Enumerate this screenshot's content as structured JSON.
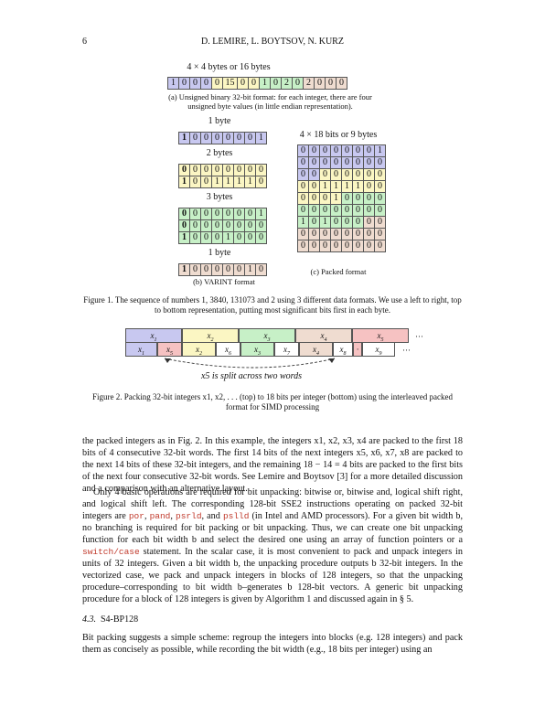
{
  "header": {
    "page_number": "6",
    "authors": "D. LEMIRE, L. BOYTSOV, N. KURZ"
  },
  "colors": {
    "purple": "#c8c8f0",
    "yellow": "#fbf6c3",
    "green": "#c7f0c7",
    "tan": "#efdcd0",
    "pink": "#f6c2c2",
    "white": "#ffffff"
  },
  "fig1": {
    "a_title": "4 × 4 bytes or 16 bytes",
    "a_bytes": [
      {
        "v": "1",
        "c": "purple"
      },
      {
        "v": "0",
        "c": "purple"
      },
      {
        "v": "0",
        "c": "purple"
      },
      {
        "v": "0",
        "c": "purple"
      },
      {
        "v": "0",
        "c": "yellow"
      },
      {
        "v": "15",
        "c": "yellow"
      },
      {
        "v": "0",
        "c": "yellow"
      },
      {
        "v": "0",
        "c": "yellow"
      },
      {
        "v": "1",
        "c": "green"
      },
      {
        "v": "0",
        "c": "green"
      },
      {
        "v": "2",
        "c": "green"
      },
      {
        "v": "0",
        "c": "green"
      },
      {
        "v": "2",
        "c": "tan"
      },
      {
        "v": "0",
        "c": "tan"
      },
      {
        "v": "0",
        "c": "tan"
      },
      {
        "v": "0",
        "c": "tan"
      }
    ],
    "a_caption": "(a) Unsigned binary 32-bit format: for each integer, there are four unsigned byte values (in little endian representation).",
    "b_groups": [
      {
        "label": "1 byte",
        "color": "purple",
        "rows": [
          [
            "1",
            "0",
            "0",
            "0",
            "0",
            "0",
            "0",
            "1"
          ]
        ]
      },
      {
        "label": "2 bytes",
        "color": "yellow",
        "rows": [
          [
            "0",
            "0",
            "0",
            "0",
            "0",
            "0",
            "0",
            "0"
          ],
          [
            "1",
            "0",
            "0",
            "1",
            "1",
            "1",
            "1",
            "0"
          ]
        ]
      },
      {
        "label": "3 bytes",
        "color": "green",
        "rows": [
          [
            "0",
            "0",
            "0",
            "0",
            "0",
            "0",
            "0",
            "1"
          ],
          [
            "0",
            "0",
            "0",
            "0",
            "0",
            "0",
            "0",
            "0"
          ],
          [
            "1",
            "0",
            "0",
            "0",
            "1",
            "0",
            "0",
            "0"
          ]
        ]
      },
      {
        "label": "1 byte",
        "color": "tan",
        "rows": [
          [
            "1",
            "0",
            "0",
            "0",
            "0",
            "0",
            "1",
            "0"
          ]
        ]
      }
    ],
    "b_caption_prefix": "(b) ",
    "b_caption_sc": "VARINT",
    "b_caption_suffix": " format",
    "c_title": "4 × 18 bits or 9 bytes",
    "c_rows": [
      {
        "bits": [
          "0",
          "0",
          "0",
          "0",
          "0",
          "0",
          "0",
          "1"
        ],
        "colors": [
          "purple",
          "purple",
          "purple",
          "purple",
          "purple",
          "purple",
          "purple",
          "purple"
        ]
      },
      {
        "bits": [
          "0",
          "0",
          "0",
          "0",
          "0",
          "0",
          "0",
          "0"
        ],
        "colors": [
          "purple",
          "purple",
          "purple",
          "purple",
          "purple",
          "purple",
          "purple",
          "purple"
        ]
      },
      {
        "bits": [
          "0",
          "0",
          "0",
          "0",
          "0",
          "0",
          "0",
          "0"
        ],
        "colors": [
          "purple",
          "purple",
          "yellow",
          "yellow",
          "yellow",
          "yellow",
          "yellow",
          "yellow"
        ]
      },
      {
        "bits": [
          "0",
          "0",
          "1",
          "1",
          "1",
          "1",
          "0",
          "0"
        ],
        "colors": [
          "yellow",
          "yellow",
          "yellow",
          "yellow",
          "yellow",
          "yellow",
          "yellow",
          "yellow"
        ]
      },
      {
        "bits": [
          "0",
          "0",
          "0",
          "1",
          "0",
          "0",
          "0",
          "0"
        ],
        "colors": [
          "yellow",
          "yellow",
          "yellow",
          "yellow",
          "green",
          "green",
          "green",
          "green"
        ]
      },
      {
        "bits": [
          "0",
          "0",
          "0",
          "0",
          "0",
          "0",
          "0",
          "0"
        ],
        "colors": [
          "green",
          "green",
          "green",
          "green",
          "green",
          "green",
          "green",
          "green"
        ]
      },
      {
        "bits": [
          "1",
          "0",
          "1",
          "0",
          "0",
          "0",
          "0",
          "0"
        ],
        "colors": [
          "green",
          "green",
          "green",
          "green",
          "green",
          "green",
          "tan",
          "tan"
        ]
      },
      {
        "bits": [
          "0",
          "0",
          "0",
          "0",
          "0",
          "0",
          "0",
          "0"
        ],
        "colors": [
          "tan",
          "tan",
          "tan",
          "tan",
          "tan",
          "tan",
          "tan",
          "tan"
        ]
      },
      {
        "bits": [
          "0",
          "0",
          "0",
          "0",
          "0",
          "0",
          "0",
          "0"
        ],
        "colors": [
          "tan",
          "tan",
          "tan",
          "tan",
          "tan",
          "tan",
          "tan",
          "tan"
        ]
      }
    ],
    "c_caption": "(c) Packed format",
    "caption": "Figure 1. The sequence of numbers 1, 3840, 131073 and 2 using 3 different data formats. We use a left to right, top to bottom representation, putting most significant bits first in each byte."
  },
  "fig2": {
    "top_row": [
      {
        "label": "x1",
        "sub": "1",
        "color": "purple"
      },
      {
        "label": "x2",
        "sub": "2",
        "color": "yellow"
      },
      {
        "label": "x3",
        "sub": "3",
        "color": "green"
      },
      {
        "label": "x4",
        "sub": "4",
        "color": "tan"
      },
      {
        "label": "x5",
        "sub": "5",
        "color": "pink"
      }
    ],
    "bottom_row": [
      {
        "label": "x1",
        "sub": "1",
        "color": "purple"
      },
      {
        "label": "x5",
        "sub": "5",
        "color": "pink"
      },
      {
        "label": "x2",
        "sub": "2",
        "color": "yellow"
      },
      {
        "label": "x6",
        "sub": "6",
        "color": "white"
      },
      {
        "label": "x3",
        "sub": "3",
        "color": "green"
      },
      {
        "label": "x7",
        "sub": "7",
        "color": "white"
      },
      {
        "label": "x4",
        "sub": "4",
        "color": "tan"
      },
      {
        "label": "x8",
        "sub": "8",
        "color": "white"
      },
      {
        "label": "·",
        "sub": "",
        "color": "pink"
      },
      {
        "label": "x9",
        "sub": "9",
        "color": "white"
      }
    ],
    "ellipsis": "···",
    "split_note": "x5 is split across two words",
    "caption": "Figure 2. Packing 32-bit integers x1, x2, . . . (top) to 18 bits per integer (bottom) using the interleaved packed format for SIMD processing"
  },
  "body": {
    "p1": "the packed integers as in Fig. 2. In this example, the integers x1, x2, x3, x4 are packed to the first 18 bits of 4 consecutive 32-bit words. The first 14 bits of the next integers x5, x6, x7, x8 are packed to the next 14 bits of these 32-bit integers, and the remaining 18 − 14 = 4 bits are packed to the first bits of the next four consecutive 32-bit words. See Lemire and Boytsov [3] for a more detailed discussion and a comparison with an alternative layout.",
    "p2a": "Only 4 basic operations are required for bit unpacking: bitwise or, bitwise and, logical shift right, and logical shift left. The corresponding 128-bit SSE2 instructions operating on packed 32-bit integers are ",
    "op1": "por",
    "op2": "pand",
    "op3": "psrld",
    "op4": "pslld",
    "p2b": " (in Intel and AMD processors). For a given bit width b, no branching is required for bit packing or bit unpacking. Thus, we can create one bit unpacking function for each bit width b and select the desired one using an array of function pointers or a ",
    "op5": "switch/case",
    "p2c": " statement. In the scalar case, it is most convenient to pack and unpack integers in units of 32 integers. Given a bit width b, the unpacking procedure outputs b 32-bit integers. In the vectorized case, we pack and unpack integers in blocks of 128 integers, so that the unpacking procedure–corresponding to bit width b–generates b 128-bit vectors. A generic bit unpacking procedure for a block of 128 integers is given by Algorithm 1 and discussed again in § 5.",
    "section_num": "4.3.",
    "section_title": "S4-BP128",
    "p3": "Bit packing suggests a simple scheme: regroup the integers into blocks (e.g. 128 integers) and pack them as concisely as possible, while recording the bit width (e.g., 18 bits per integer) using an"
  }
}
